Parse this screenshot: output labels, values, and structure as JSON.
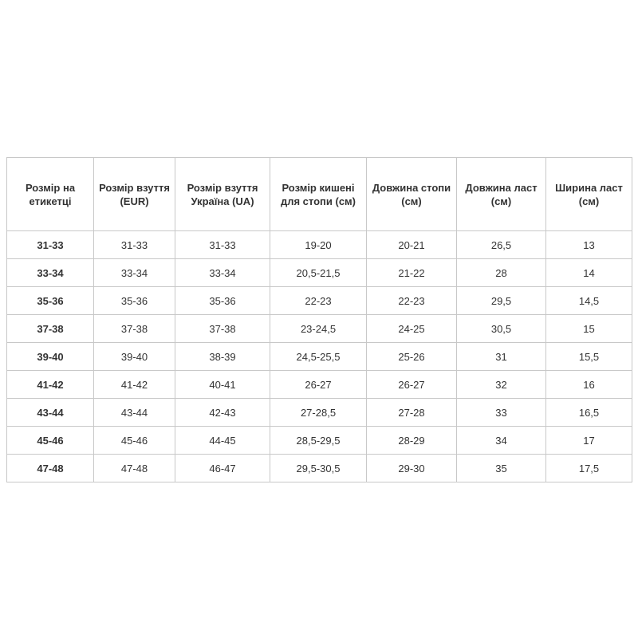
{
  "table": {
    "headers": [
      "Розмір на етикетці",
      "Розмір взуття (EUR)",
      "Розмір взуття Україна (UA)",
      "Розмір кишені для стопи (см)",
      "Довжина стопи (см)",
      "Довжина ласт (см)",
      "Ширина ласт (см)"
    ],
    "rows": [
      [
        "31-33",
        "31-33",
        "31-33",
        "19-20",
        "20-21",
        "26,5",
        "13"
      ],
      [
        "33-34",
        "33-34",
        "33-34",
        "20,5-21,5",
        "21-22",
        "28",
        "14"
      ],
      [
        "35-36",
        "35-36",
        "35-36",
        "22-23",
        "22-23",
        "29,5",
        "14,5"
      ],
      [
        "37-38",
        "37-38",
        "37-38",
        "23-24,5",
        "24-25",
        "30,5",
        "15"
      ],
      [
        "39-40",
        "39-40",
        "38-39",
        "24,5-25,5",
        "25-26",
        "31",
        "15,5"
      ],
      [
        "41-42",
        "41-42",
        "40-41",
        "26-27",
        "26-27",
        "32",
        "16"
      ],
      [
        "43-44",
        "43-44",
        "42-43",
        "27-28,5",
        "27-28",
        "33",
        "16,5"
      ],
      [
        "45-46",
        "45-46",
        "44-45",
        "28,5-29,5",
        "28-29",
        "34",
        "17"
      ],
      [
        "47-48",
        "47-48",
        "46-47",
        "29,5-30,5",
        "29-30",
        "35",
        "17,5"
      ]
    ]
  }
}
